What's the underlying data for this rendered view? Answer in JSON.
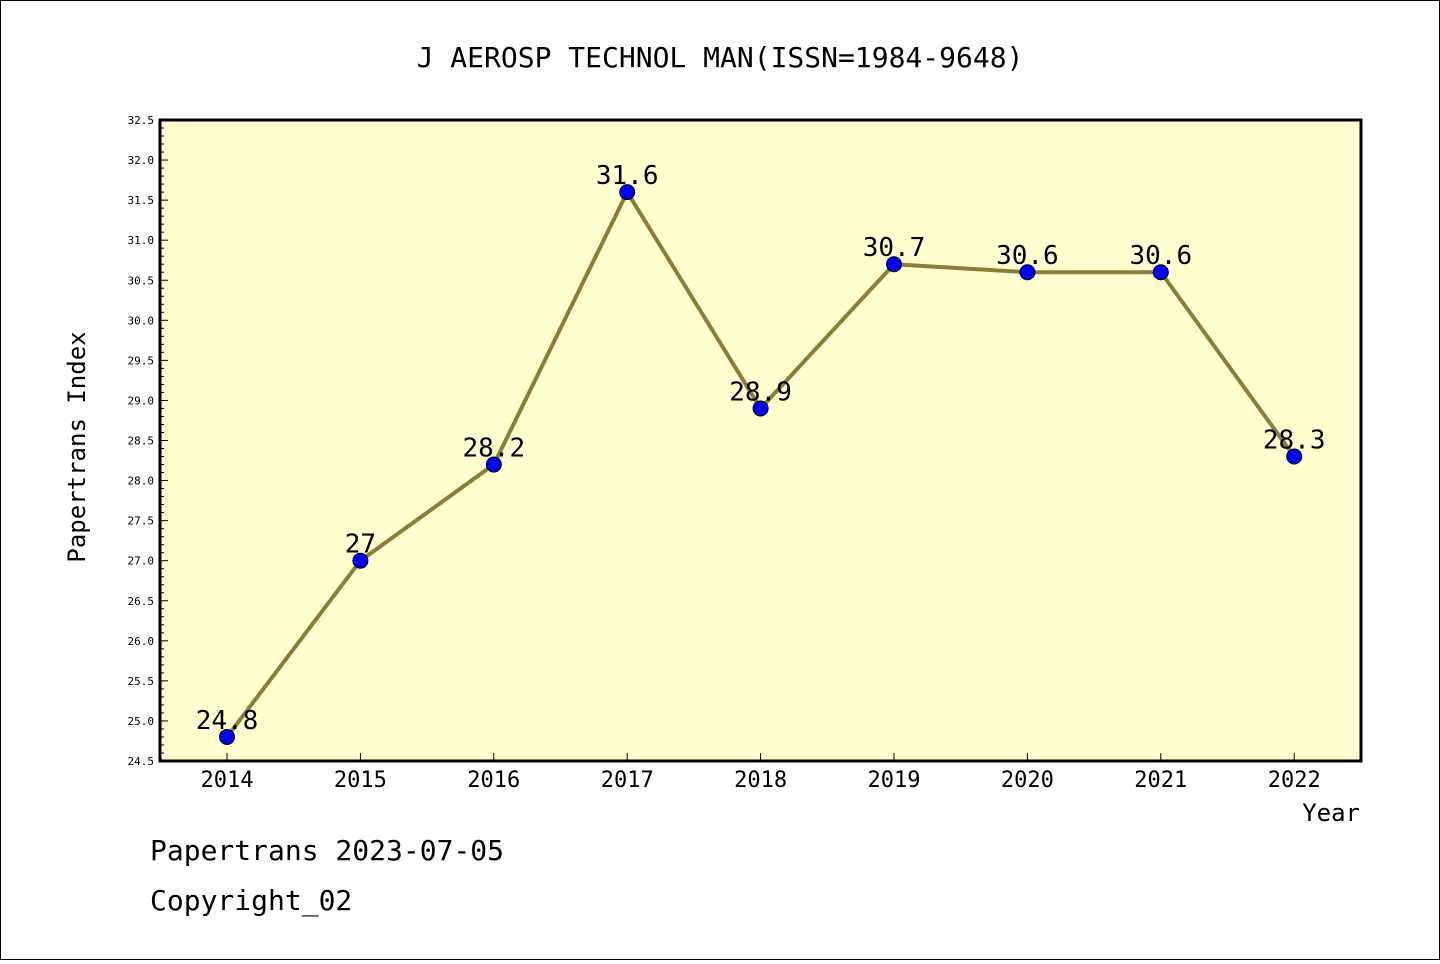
{
  "chart_data": {
    "type": "line",
    "title": "J AEROSP TECHNOL MAN(ISSN=1984-9648)",
    "xlabel": "Year",
    "ylabel": "Papertrans Index",
    "categories": [
      "2014",
      "2015",
      "2016",
      "2017",
      "2018",
      "2019",
      "2020",
      "2021",
      "2022"
    ],
    "values": [
      24.8,
      27,
      28.2,
      31.6,
      28.9,
      30.7,
      30.6,
      30.6,
      28.3
    ],
    "data_labels": [
      "24.8",
      "27",
      "28.2",
      "31.6",
      "28.9",
      "30.7",
      "30.6",
      "30.6",
      "28.3"
    ],
    "ylim": [
      24.5,
      32.5
    ],
    "yticks": [
      "24.5",
      "25.0",
      "25.5",
      "26.0",
      "26.5",
      "27.0",
      "27.5",
      "28.0",
      "28.5",
      "29.0",
      "29.5",
      "30.0",
      "30.5",
      "31.0",
      "31.5",
      "32.0",
      "32.5"
    ],
    "grid": false,
    "colors": {
      "plot_background": "#ffffd0",
      "line": "#8b7d3a",
      "marker": "#0000ff"
    }
  },
  "footer": {
    "line1": "Papertrans 2023-07-05",
    "line2": "Copyright_02"
  }
}
